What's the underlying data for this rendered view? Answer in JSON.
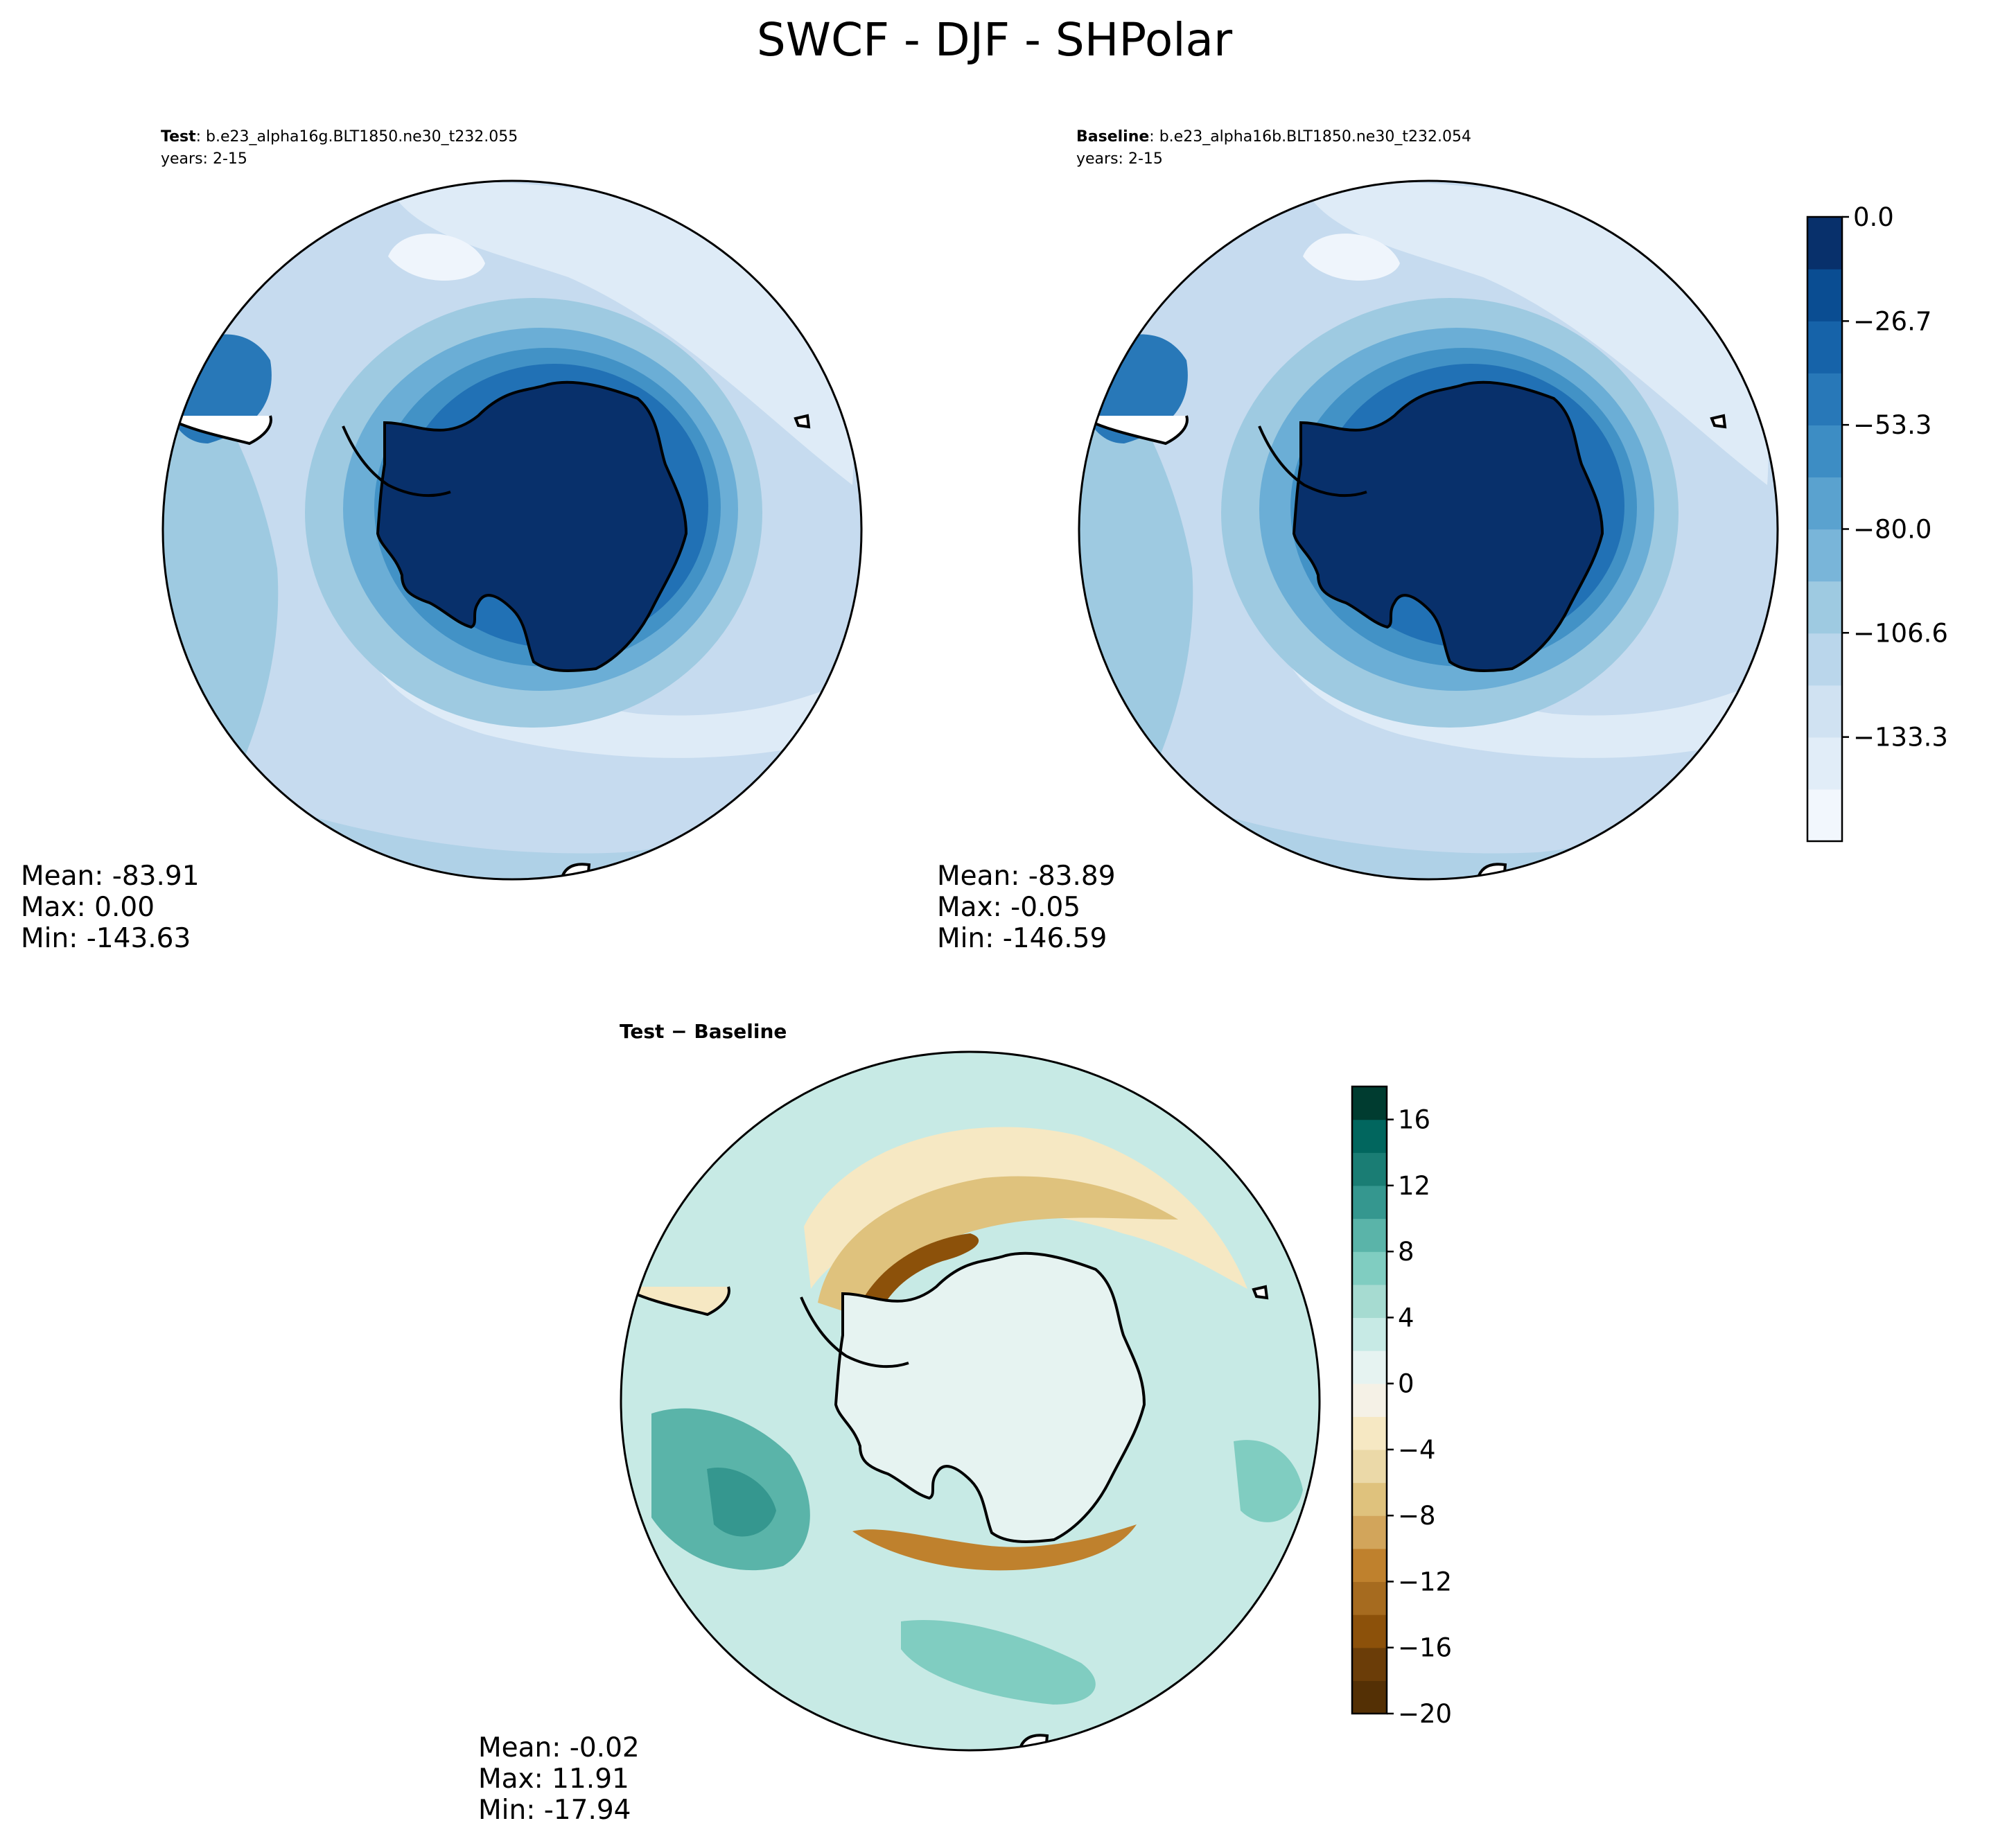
{
  "title": "SWCF - DJF - SHPolar",
  "chart_data": [
    {
      "type": "heatmap",
      "projection": "south-polar-stereographic",
      "panel": "test",
      "label_bold": "Test",
      "label_case": ": b.e23_alpha16g.BLT1850.ne30_t232.055",
      "label_years": "years: 2-15",
      "stats": {
        "mean": "Mean: -83.91",
        "max": "Max:  0.00",
        "min": "Min: -143.63"
      }
    },
    {
      "type": "heatmap",
      "projection": "south-polar-stereographic",
      "panel": "baseline",
      "label_bold": "Baseline",
      "label_case": ": b.e23_alpha16b.BLT1850.ne30_t232.054",
      "label_years": "years: 2-15",
      "stats": {
        "mean": "Mean: -83.89",
        "max": "Max: -0.05",
        "min": "Min: -146.59"
      },
      "colorbar": {
        "colormap": "Blues_r",
        "range": [
          -160,
          0
        ],
        "levels": 12,
        "ticks": [
          0.0,
          -26.7,
          -53.3,
          -80.0,
          -106.6,
          -133.3
        ],
        "tick_labels": [
          "0.0",
          "−26.7",
          "−53.3",
          "−80.0",
          "−106.6",
          "−133.3"
        ],
        "colors": [
          "#f2f7fd",
          "#e1edf8",
          "#d0e2f2",
          "#bad6eb",
          "#9ecae1",
          "#79b5d9",
          "#5aa2cf",
          "#3d8dc4",
          "#2878b8",
          "#1663a9",
          "#0a4d92",
          "#08306b"
        ]
      }
    },
    {
      "type": "heatmap",
      "projection": "south-polar-stereographic",
      "panel": "difference",
      "label_bold": "Test − Baseline",
      "stats": {
        "mean": "Mean: -0.02",
        "max": "Max: 11.91",
        "min": "Min: -17.94"
      },
      "colorbar": {
        "colormap": "BrBG",
        "range": [
          -20,
          18
        ],
        "levels": 19,
        "ticks": [
          16,
          12,
          8,
          4,
          0,
          -4,
          -8,
          -12,
          -16,
          -20
        ],
        "tick_labels": [
          "16",
          "12",
          "8",
          "4",
          "0",
          "−4",
          "−8",
          "−12",
          "−16",
          "−20"
        ],
        "colors": [
          "#543005",
          "#6b3d08",
          "#8c510a",
          "#a66b1f",
          "#bf812d",
          "#d2a55b",
          "#dfc27d",
          "#ebd9a8",
          "#f6e8c3",
          "#f5f1e6",
          "#e6f3f1",
          "#c7eae5",
          "#a6dbd1",
          "#80cdc1",
          "#5ab4a9",
          "#35978f",
          "#1a7d74",
          "#01665e",
          "#003c30"
        ]
      }
    }
  ]
}
